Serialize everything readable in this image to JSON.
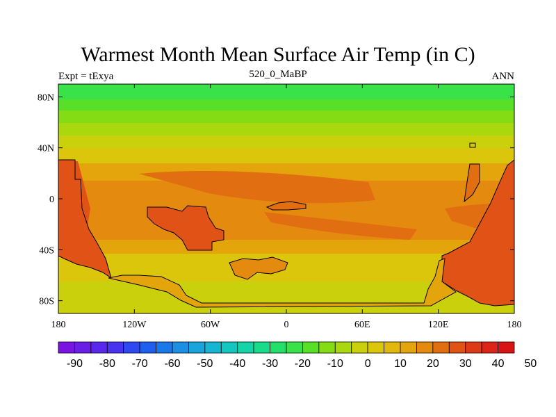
{
  "title": "Warmest Month Mean Surface Air Temp (in C)",
  "left_label": "Expt = tExya",
  "center_label": "520_0_MaBP",
  "right_label": "ANN",
  "map": {
    "lon_ticks": [
      "180",
      "120W",
      "60W",
      "0",
      "60E",
      "120E",
      "180"
    ],
    "lat_ticks": [
      "80N",
      "40N",
      "0",
      "40S",
      "80S"
    ]
  },
  "colorbar": {
    "labels": [
      "-90",
      "-80",
      "-70",
      "-60",
      "-50",
      "-40",
      "-30",
      "-20",
      "-10",
      "0",
      "10",
      "20",
      "30",
      "40",
      "50"
    ],
    "colors": [
      "#7a14e0",
      "#6a1ee6",
      "#5a28ec",
      "#4a33f0",
      "#2f49f2",
      "#1f5ff0",
      "#1a78ea",
      "#1a8fe4",
      "#1aa4dc",
      "#16b6d2",
      "#14c6c0",
      "#14d4a8",
      "#18dc8a",
      "#22e06a",
      "#3ae24a",
      "#58e028",
      "#84dc14",
      "#aad80e",
      "#cad00c",
      "#dcc60c",
      "#e2b80c",
      "#e4a40c",
      "#e48a0e",
      "#e26e12",
      "#e05216",
      "#de3a18",
      "#dc2418",
      "#da1414"
    ]
  }
}
